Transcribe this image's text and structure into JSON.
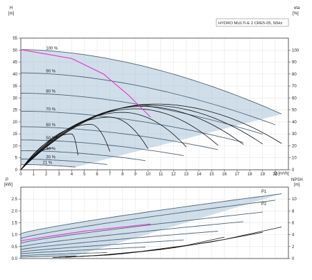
{
  "chart_data": {
    "type": "line",
    "title": "HYDRO MULTI-E 2 CRE5-05, 50Hz",
    "colors": {
      "region": "#a9c3d8",
      "curve": "#4a6274",
      "max_curve": "#e040d0",
      "efficiency": "#111111",
      "background": "#ffffff"
    },
    "x_axis": {
      "label": "Q [m³/h]",
      "range": [
        0,
        21
      ],
      "ticks": [
        "0",
        "1",
        "2",
        "3",
        "4",
        "5",
        "6",
        "7",
        "8",
        "9",
        "10",
        "11",
        "12",
        "13",
        "14",
        "15",
        "16",
        "17",
        "18",
        "19",
        "20"
      ]
    },
    "top_panel": {
      "y_left": {
        "label": "H",
        "unit": "[m]",
        "range": [
          0,
          55
        ],
        "ticks": [
          "0",
          "5",
          "10",
          "15",
          "20",
          "25",
          "30",
          "35",
          "40",
          "45",
          "50",
          "55"
        ]
      },
      "y_right": {
        "label": "eta",
        "unit": "[%]",
        "range": [
          0,
          110
        ],
        "ticks": [
          "0",
          "10",
          "20",
          "30",
          "40",
          "50",
          "60",
          "70",
          "80",
          "90",
          "100"
        ]
      },
      "speed_curves": [
        {
          "speed": "100 %",
          "shutoff_head": 50.2,
          "max_flow": 20.5
        },
        {
          "speed": "90 %",
          "shutoff_head": 40.5,
          "max_flow": 20.0
        },
        {
          "speed": "80 %",
          "shutoff_head": 32.0,
          "max_flow": 19.0
        },
        {
          "speed": "70 %",
          "shutoff_head": 24.5,
          "max_flow": 17.5
        },
        {
          "speed": "60 %",
          "shutoff_head": 18.0,
          "max_flow": 15.5
        },
        {
          "speed": "50 %",
          "shutoff_head": 12.5,
          "max_flow": 12.8
        },
        {
          "speed": "40 %",
          "shutoff_head": 8.0,
          "max_flow": 9.8
        },
        {
          "speed": "30 %",
          "shutoff_head": 4.5,
          "max_flow": 6.8
        },
        {
          "speed": "21 %",
          "shutoff_head": 2.2,
          "max_flow": 4.3
        }
      ],
      "efficiency_curves": [
        {
          "peak_q": 10.5,
          "peak_eta": 55,
          "end_q": 20.5
        },
        {
          "peak_q": 10.0,
          "peak_eta": 54,
          "end_q": 19.0
        },
        {
          "peak_q": 9.5,
          "peak_eta": 53,
          "end_q": 17.5
        },
        {
          "peak_q": 9.0,
          "peak_eta": 51,
          "end_q": 15.5
        },
        {
          "peak_q": 8.0,
          "peak_eta": 48,
          "end_q": 13.0
        },
        {
          "peak_q": 7.0,
          "peak_eta": 44,
          "end_q": 10.0
        },
        {
          "peak_q": 5.5,
          "peak_eta": 38,
          "end_q": 7.0
        },
        {
          "peak_q": 4.0,
          "peak_eta": 30,
          "end_q": 4.5
        },
        {
          "peak_q": 2.5,
          "peak_eta": 18,
          "end_q": 2.5
        }
      ],
      "max_curve": {
        "q": [
          0,
          4,
          6.5,
          8.5,
          10.2
        ],
        "h": [
          50.2,
          46.5,
          40,
          31,
          22
        ]
      }
    },
    "bottom_panel": {
      "y_left": {
        "label": "P",
        "unit": "[kW]",
        "range": [
          0,
          3.0
        ],
        "ticks": [
          "0.0",
          "0.5",
          "1.0",
          "1.5",
          "2.0",
          "2.5"
        ]
      },
      "y_right": {
        "label": "NPSH",
        "unit": "[m]",
        "range": [
          0,
          12
        ],
        "ticks": [
          "0",
          "2",
          "4",
          "6",
          "8",
          "10"
        ]
      },
      "series_labels": [
        "P1",
        "P2"
      ],
      "power_curves": [
        {
          "p0": 1.05,
          "p_end": 2.72,
          "end_q": 20.5
        },
        {
          "p0": 0.85,
          "p_end": 2.45,
          "end_q": 20.0
        },
        {
          "p0": 0.65,
          "p_end": 1.95,
          "end_q": 19.0
        },
        {
          "p0": 0.5,
          "p_end": 1.55,
          "end_q": 17.5
        },
        {
          "p0": 0.38,
          "p_end": 1.15,
          "end_q": 15.5
        },
        {
          "p0": 0.28,
          "p_end": 0.78,
          "end_q": 12.8
        },
        {
          "p0": 0.2,
          "p_end": 0.48,
          "end_q": 9.8
        },
        {
          "p0": 0.12,
          "p_end": 0.25,
          "end_q": 6.8
        },
        {
          "p0": 0.06,
          "p_end": 0.11,
          "end_q": 4.3
        }
      ],
      "max_power_curve": {
        "q": [
          0,
          5,
          10.2
        ],
        "p": [
          0.75,
          1.15,
          1.45
        ]
      },
      "npsh_curves": [
        {
          "q": [
            3.5,
            8,
            12,
            16,
            20.5
          ],
          "npsh": [
            0.2,
            0.8,
            1.8,
            3.2,
            5.3
          ]
        },
        {
          "q": [
            3,
            7,
            11,
            15,
            19
          ],
          "npsh": [
            0.2,
            0.6,
            1.5,
            2.8,
            4.4
          ]
        },
        {
          "q": [
            2.5,
            6,
            9.5,
            13,
            16
          ],
          "npsh": [
            0.15,
            0.5,
            1.2,
            2.2,
            3.6
          ]
        }
      ]
    }
  }
}
